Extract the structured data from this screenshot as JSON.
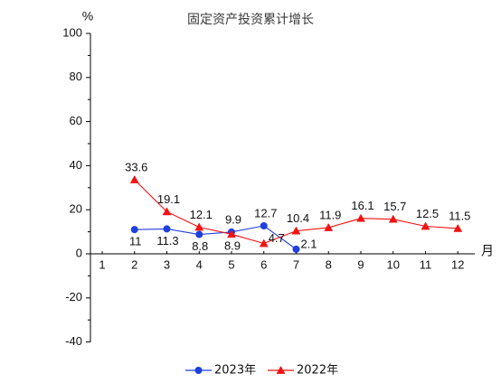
{
  "chart_data": {
    "type": "line",
    "title": "固定资产投资累计增长",
    "ylabel": "%",
    "xlabel": "月",
    "x": [
      1,
      2,
      3,
      4,
      5,
      6,
      7,
      8,
      9,
      10,
      11,
      12
    ],
    "ylim": [
      -40,
      100
    ],
    "yticks": [
      -40,
      -20,
      0,
      20,
      40,
      60,
      80,
      100
    ],
    "grid": false,
    "legend_position": "bottom",
    "series": [
      {
        "name": "2023年",
        "color": "#1f3fe0",
        "marker": "circle",
        "values": [
          null,
          11,
          11.3,
          8.8,
          9.9,
          12.7,
          2.1,
          null,
          null,
          null,
          null,
          null
        ]
      },
      {
        "name": "2022年",
        "color": "#f21212",
        "marker": "triangle",
        "values": [
          null,
          33.6,
          19.1,
          12.1,
          8.9,
          4.7,
          10.4,
          11.9,
          16.1,
          15.7,
          12.5,
          11.5
        ]
      }
    ]
  }
}
